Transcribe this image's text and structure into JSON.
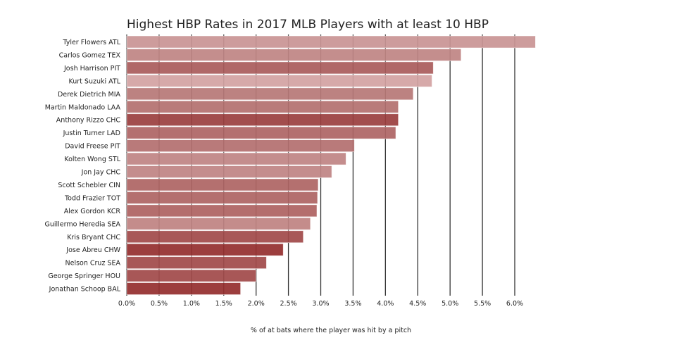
{
  "chart_data": {
    "type": "bar",
    "orientation": "horizontal",
    "title": "Highest HBP Rates in 2017 MLB Players with at least 10 HBP",
    "xlabel": "% of at bats where the player was hit by a pitch",
    "ylabel": "",
    "xlim": [
      0,
      6.35
    ],
    "grid": true,
    "x_ticks": [
      "0.0%",
      "0.5%",
      "1.0%",
      "1.5%",
      "2.0%",
      "2.5%",
      "3.0%",
      "3.5%",
      "4.0%",
      "4.5%",
      "5.0%",
      "5.5%",
      "6.0%"
    ],
    "categories": [
      "Tyler Flowers ATL",
      "Carlos Gomez TEX",
      "Josh Harrison PIT",
      "Kurt Suzuki ATL",
      "Derek Dietrich MIA",
      "Martin Maldonado LAA",
      "Anthony Rizzo CHC",
      "Justin Turner LAD",
      "David Freese PIT",
      "Kolten Wong STL",
      "Jon Jay CHC",
      "Scott Schebler CIN",
      "Todd Frazier TOT",
      "Alex Gordon KCR",
      "Guillermo Heredia SEA",
      "Kris Bryant CHC",
      "Jose Abreu CHW",
      "Nelson Cruz SEA",
      "George Springer HOU",
      "Jonathan Schoop BAL"
    ],
    "values": [
      6.32,
      5.17,
      4.74,
      4.72,
      4.43,
      4.2,
      4.2,
      4.16,
      3.52,
      3.39,
      3.17,
      2.96,
      2.95,
      2.94,
      2.84,
      2.73,
      2.42,
      2.16,
      2.0,
      1.76
    ],
    "colors": [
      "#c99494",
      "#c08584",
      "#aa5c5c",
      "#d3a3a3",
      "#b77877",
      "#b47170",
      "#9b3f3f",
      "#ae6565",
      "#b47070",
      "#c08484",
      "#c08484",
      "#ae6564",
      "#ae6564",
      "#ae6362",
      "#c08382",
      "#a14a4a",
      "#952f2f",
      "#a14a4a",
      "#a14a4a",
      "#952f2f"
    ]
  }
}
